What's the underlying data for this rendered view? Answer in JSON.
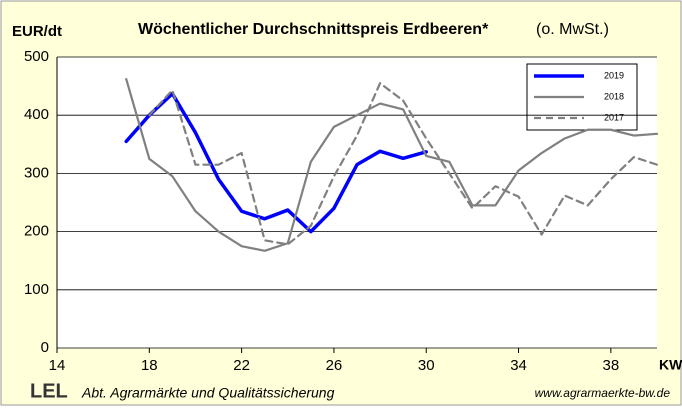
{
  "chart_data": {
    "type": "line",
    "title": "Wöchentlicher Durchschnittspreis Erdbeeren*",
    "subtitle": "(o. MwSt.)",
    "y_label": "EUR/dt",
    "x_label": "KW",
    "footer_logo": "LEL",
    "footer_left": "Abt. Agrarmärkte und Qualitätssicherung",
    "footer_right": "www.agrarmaerkte-bw.de",
    "xlim": [
      14,
      40
    ],
    "xticks": [
      14,
      18,
      22,
      26,
      30,
      34,
      38
    ],
    "ylim": [
      0,
      500
    ],
    "yticks": [
      0,
      100,
      200,
      300,
      400,
      500
    ],
    "grid": true,
    "legend": "upper right",
    "series": [
      {
        "name": "2019",
        "color": "#0000ff",
        "width": 3.5,
        "dash": false,
        "x": [
          17,
          18,
          19,
          20,
          21,
          22,
          23,
          24,
          25,
          26,
          27,
          28,
          29,
          30
        ],
        "values": [
          355,
          400,
          437,
          370,
          290,
          235,
          222,
          237,
          200,
          240,
          315,
          338,
          326,
          337
        ]
      },
      {
        "name": "2018",
        "color": "#808080",
        "width": 2.2,
        "dash": false,
        "x": [
          17,
          18,
          19,
          20,
          21,
          22,
          23,
          24,
          25,
          26,
          27,
          28,
          29,
          30,
          31,
          32,
          33,
          34,
          35,
          36,
          37,
          38,
          39,
          40
        ],
        "values": [
          462,
          325,
          295,
          235,
          200,
          175,
          167,
          180,
          320,
          380,
          400,
          420,
          410,
          330,
          320,
          245,
          245,
          305,
          335,
          360,
          375,
          375,
          365,
          368
        ]
      },
      {
        "name": "2017",
        "color": "#808080",
        "width": 2.2,
        "dash": true,
        "x": [
          18,
          19,
          20,
          21,
          22,
          23,
          24,
          25,
          26,
          27,
          28,
          29,
          30,
          31,
          32,
          33,
          34,
          35,
          36,
          37,
          38,
          39,
          40
        ],
        "values": [
          400,
          443,
          315,
          315,
          335,
          185,
          178,
          210,
          295,
          365,
          455,
          425,
          360,
          300,
          240,
          278,
          260,
          195,
          262,
          245,
          290,
          328,
          315
        ]
      }
    ]
  }
}
